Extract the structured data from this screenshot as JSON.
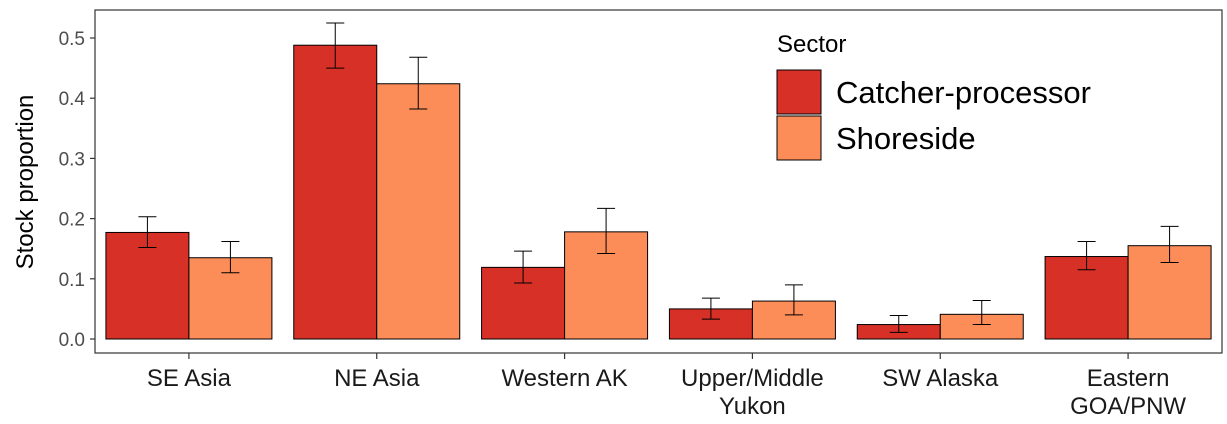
{
  "chart_data": {
    "type": "bar",
    "title": "",
    "xlabel": "",
    "ylabel": "Stock proportion",
    "ylim": [
      -0.025,
      0.55
    ],
    "yticks": [
      "0.0",
      "0.1",
      "0.2",
      "0.3",
      "0.4",
      "0.5"
    ],
    "categories": [
      [
        "SE Asia"
      ],
      [
        "NE Asia"
      ],
      [
        "Western AK"
      ],
      [
        "Upper/Middle",
        "Yukon"
      ],
      [
        "SW Alaska"
      ],
      [
        "Eastern",
        "GOA/PNW"
      ]
    ],
    "legend": {
      "title": "Sector",
      "position": "top-right-inside"
    },
    "grid": false,
    "series": [
      {
        "name": "Catcher-processor",
        "color": "#d73027",
        "values": [
          0.177,
          0.488,
          0.119,
          0.05,
          0.024,
          0.137
        ],
        "err_low": [
          0.152,
          0.45,
          0.093,
          0.033,
          0.011,
          0.115
        ],
        "err_high": [
          0.203,
          0.525,
          0.146,
          0.068,
          0.039,
          0.162
        ]
      },
      {
        "name": "Shoreside",
        "color": "#fc8d59",
        "values": [
          0.135,
          0.424,
          0.178,
          0.063,
          0.041,
          0.155
        ],
        "err_low": [
          0.11,
          0.382,
          0.142,
          0.04,
          0.024,
          0.127
        ],
        "err_high": [
          0.162,
          0.468,
          0.217,
          0.09,
          0.064,
          0.187
        ]
      }
    ]
  }
}
